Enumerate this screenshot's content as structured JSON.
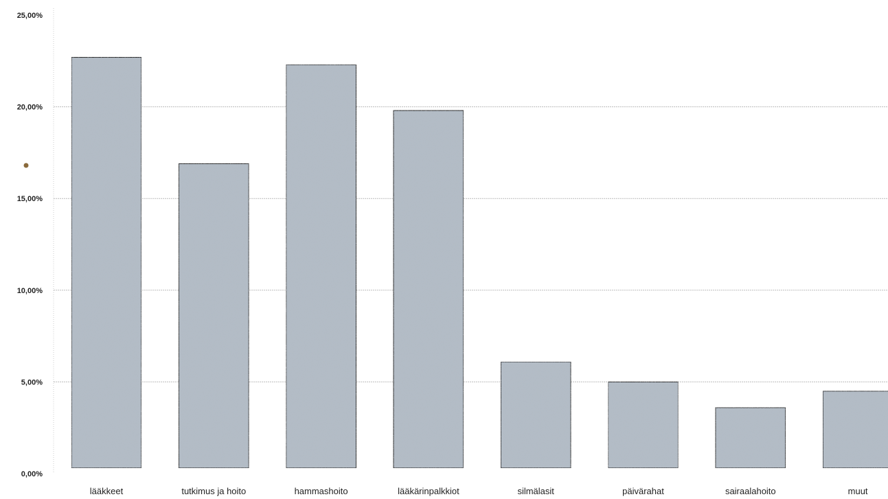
{
  "chart_data": {
    "type": "bar",
    "categories": [
      "lääkkeet",
      "tutkimus ja hoito",
      "hammashoito",
      "lääkärinpalkkiot",
      "silmälasit",
      "päivärahat",
      "sairaalahoito",
      "muut"
    ],
    "values": [
      22.7,
      16.9,
      22.3,
      19.8,
      6.1,
      5.0,
      3.6,
      4.5
    ],
    "y_ticks": [
      "0,00%",
      "5,00%",
      "10,00%",
      "15,00%",
      "20,00%",
      "25,00%"
    ],
    "ylim": [
      0,
      25
    ],
    "grid": true,
    "title": "",
    "xlabel": "",
    "ylabel": ""
  },
  "colors": {
    "bar_fill": "#b3bcc6",
    "bar_stroke": "#2b2b2b",
    "gridline": "#bbbbbb",
    "axis": "#cccccc",
    "text": "#222222",
    "dot": "#8a6a3c"
  }
}
